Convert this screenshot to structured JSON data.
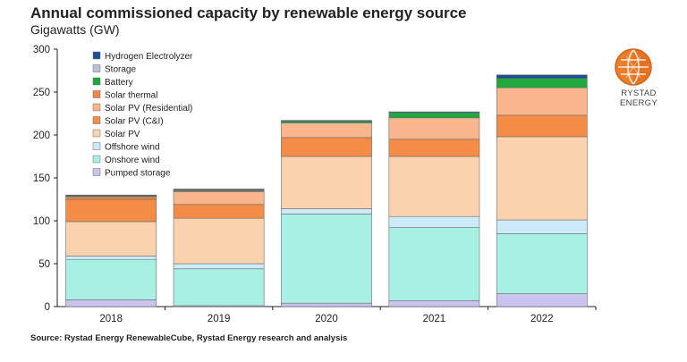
{
  "chart_data": {
    "type": "bar",
    "stacked": true,
    "title": "Annual commissioned capacity by renewable energy source",
    "subtitle": "Gigawatts (GW)",
    "source": "Source: Rystad Energy RenewableCube, Rystad Energy research and analysis",
    "categories": [
      "2018",
      "2019",
      "2020",
      "2021",
      "2022"
    ],
    "ylim": [
      0,
      300
    ],
    "yticks": [
      0,
      50,
      100,
      150,
      200,
      250,
      300
    ],
    "grid": false,
    "legend_position": "top-left",
    "series": [
      {
        "name": "Pumped storage",
        "color": "#c9c3ee",
        "values": [
          8,
          1,
          4,
          7,
          15
        ]
      },
      {
        "name": "Onshore wind",
        "color": "#a8f0e4",
        "values": [
          47,
          43,
          104,
          85,
          70
        ]
      },
      {
        "name": "Offshore wind",
        "color": "#cdeaf8",
        "values": [
          4,
          6,
          6,
          13,
          16
        ]
      },
      {
        "name": "Solar PV",
        "color": "#fad3ae",
        "values": [
          40,
          53,
          61,
          70,
          97
        ]
      },
      {
        "name": "Solar PV (C&I)",
        "color": "#f28c46",
        "values": [
          26,
          16,
          22,
          20,
          25
        ]
      },
      {
        "name": "Solar PV (Residential)",
        "color": "#f9b68c",
        "values": [
          0,
          15,
          17,
          25,
          32
        ]
      },
      {
        "name": "Solar thermal",
        "color": "#f0864a",
        "values": [
          3,
          1,
          0,
          0,
          0
        ]
      },
      {
        "name": "Battery",
        "color": "#1fa83e",
        "values": [
          1,
          1,
          2,
          6,
          11
        ]
      },
      {
        "name": "Storage",
        "color": "#bcc2d8",
        "values": [
          0,
          0,
          0,
          0,
          0
        ]
      },
      {
        "name": "Hydrogen Electrolyzer",
        "color": "#1c4f94",
        "values": [
          1,
          1,
          1,
          1,
          4
        ]
      }
    ]
  },
  "logo": {
    "text": "RYSTAD ENERGY"
  }
}
